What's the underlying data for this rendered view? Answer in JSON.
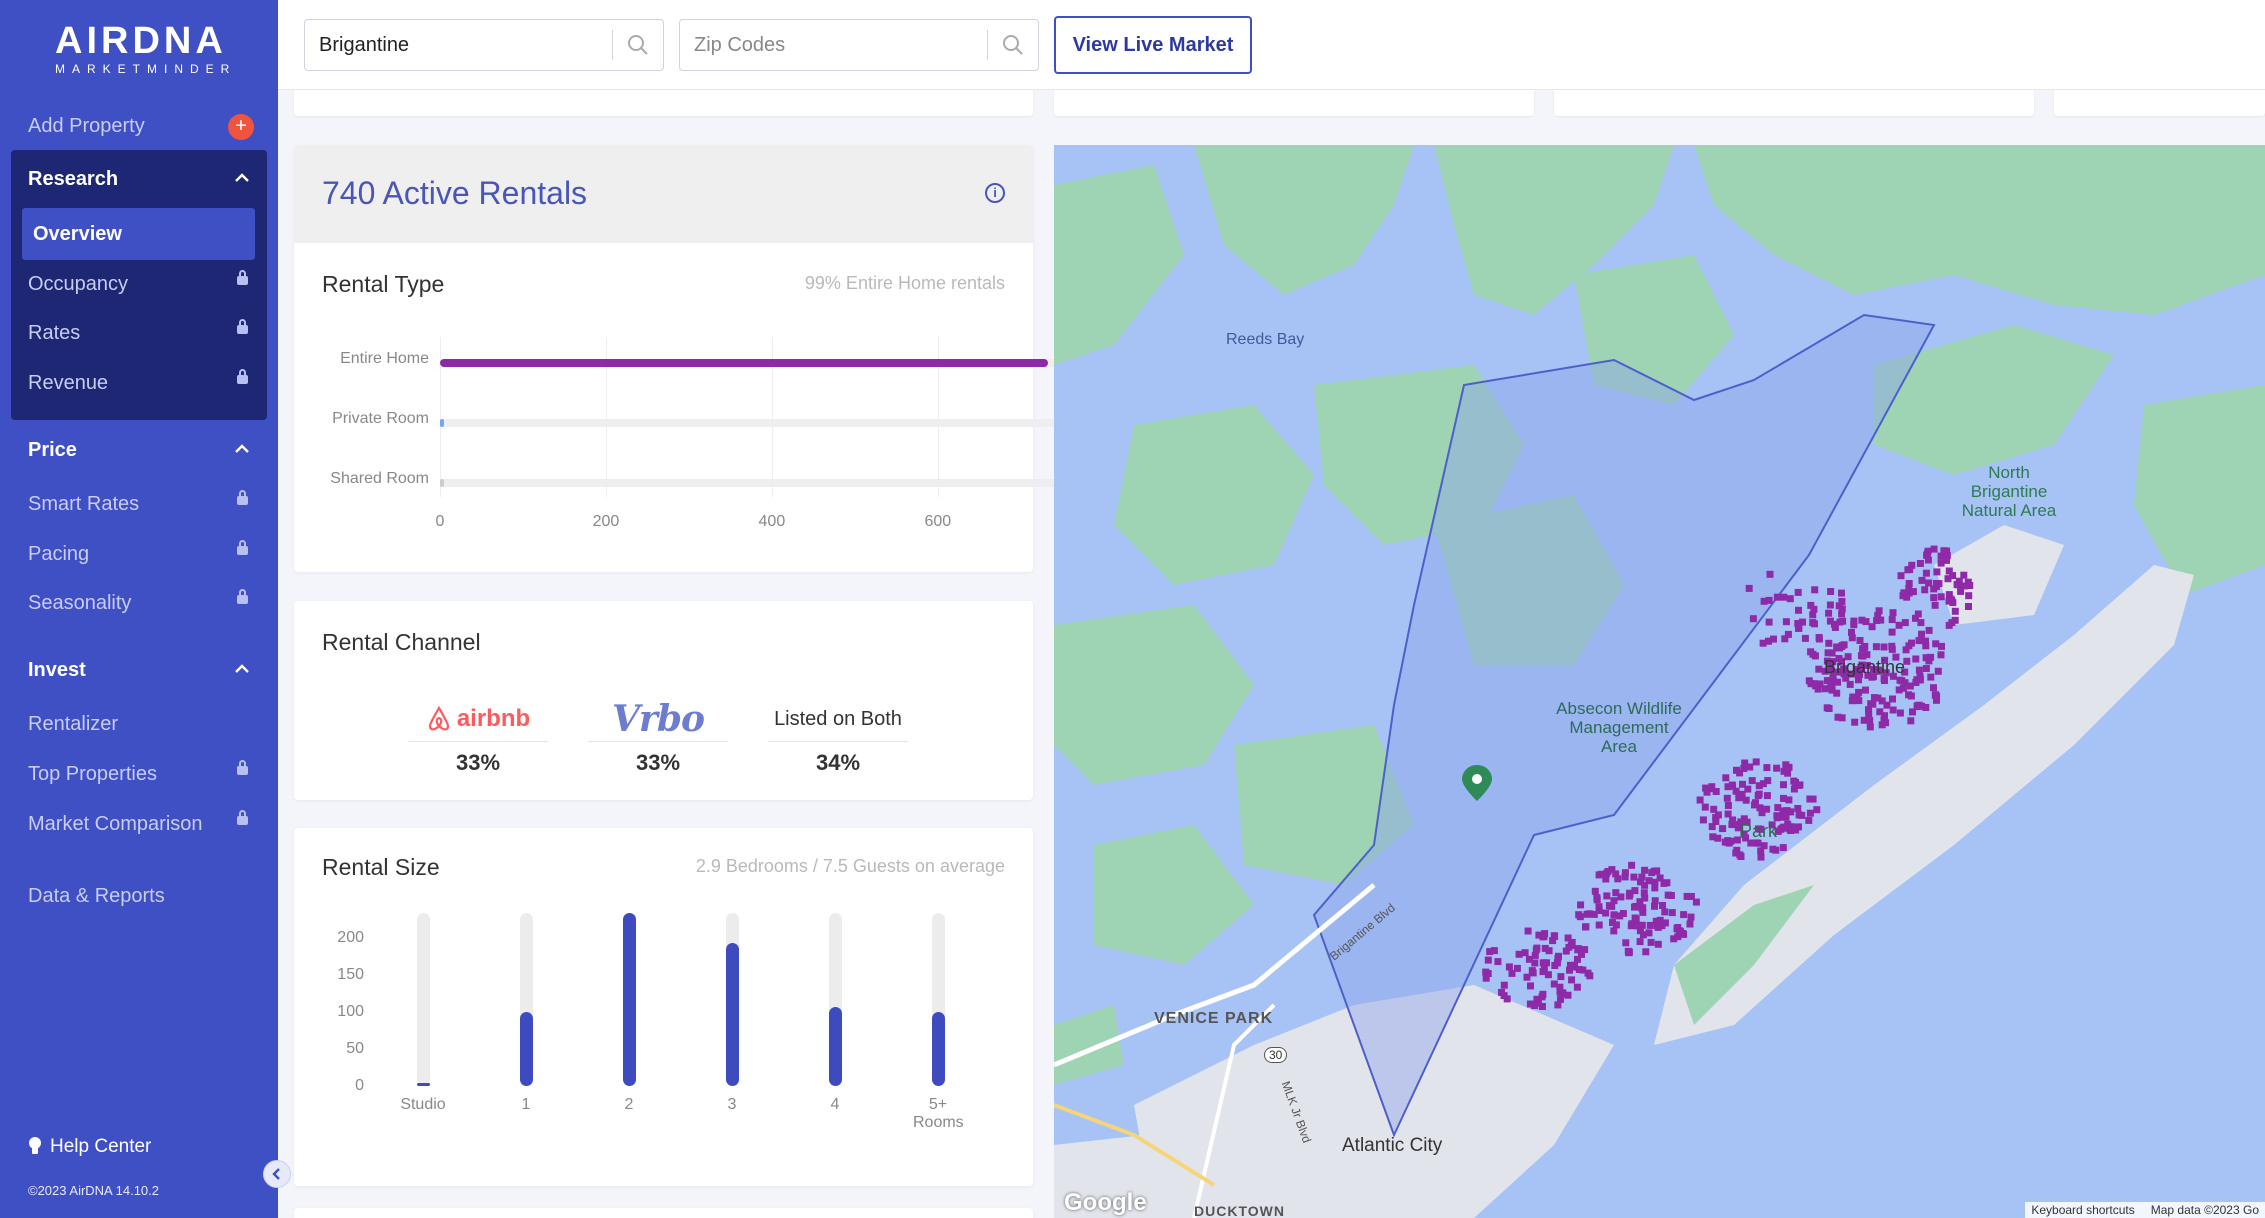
{
  "brand": {
    "name": "AIRDNA",
    "tagline": "MARKETMINDER"
  },
  "sidebar": {
    "add_property": "Add Property",
    "research": {
      "label": "Research",
      "items": [
        {
          "label": "Overview",
          "locked": false,
          "active": true
        },
        {
          "label": "Occupancy",
          "locked": true
        },
        {
          "label": "Rates",
          "locked": true
        },
        {
          "label": "Revenue",
          "locked": true
        }
      ]
    },
    "price": {
      "label": "Price",
      "items": [
        {
          "label": "Smart Rates",
          "locked": true
        },
        {
          "label": "Pacing",
          "locked": true
        },
        {
          "label": "Seasonality",
          "locked": true
        }
      ]
    },
    "invest": {
      "label": "Invest",
      "items": [
        {
          "label": "Rentalizer",
          "locked": false
        },
        {
          "label": "Top Properties",
          "locked": true
        },
        {
          "label": "Market Comparison",
          "locked": true
        }
      ]
    },
    "data_reports": "Data & Reports",
    "help_center": "Help Center",
    "copyright": "©2023 AirDNA 14.10.2"
  },
  "topbar": {
    "market_value": "Brigantine",
    "zip_placeholder": "Zip Codes",
    "live_market_button": "View Live Market"
  },
  "active_rentals": {
    "title": "740 Active Rentals"
  },
  "rental_type": {
    "title": "Rental Type",
    "subtitle": "99% Entire Home rentals",
    "categories": [
      "Entire Home",
      "Private Room",
      "Shared Room"
    ],
    "values": [
      733,
      5,
      0
    ],
    "ticks": [
      "0",
      "200",
      "400",
      "600"
    ],
    "xlim": [
      0,
      740
    ],
    "colors": [
      "#8e2aa8",
      "#6ea8f0",
      "#cccccc"
    ]
  },
  "rental_channel": {
    "title": "Rental Channel",
    "channels": [
      {
        "name": "airbnb",
        "value": "33%"
      },
      {
        "name": "Vrbo",
        "value": "33%"
      },
      {
        "name": "Listed on Both",
        "value": "34%"
      }
    ]
  },
  "rental_size": {
    "title": "Rental Size",
    "subtitle": "2.9 Bedrooms / 7.5 Guests on average",
    "categories": [
      "Studio",
      "1",
      "2",
      "3",
      "4",
      "5+ Rooms"
    ],
    "values": [
      3,
      100,
      233,
      192,
      107,
      100
    ],
    "yticks": [
      "200",
      "150",
      "100",
      "50",
      "0"
    ],
    "ylim": [
      0,
      233
    ]
  },
  "map": {
    "labels": {
      "reeds_bay": "Reeds Bay",
      "north_brigantine": "North Brigantine Natural Area",
      "absecon": "Absecon Wildlife Management Area",
      "brigantine": "Brigantine",
      "park": "Park",
      "venice_park": "VENICE PARK",
      "atlantic_city": "Atlantic City",
      "ducktown": "DUCKTOWN",
      "brigantine_blvd": "Brigantine Blvd",
      "mlk_blvd": "MLK Jr Blvd",
      "route": "30",
      "google": "Google"
    },
    "footer": {
      "shortcuts": "Keyboard shortcuts",
      "data": "Map data ©2023 Go"
    }
  },
  "colors": {
    "sidebar": "#3f4fc4",
    "sidebar_dark": "#1d2774",
    "accent": "#8e2aa8",
    "bar": "#3d4bbf"
  }
}
